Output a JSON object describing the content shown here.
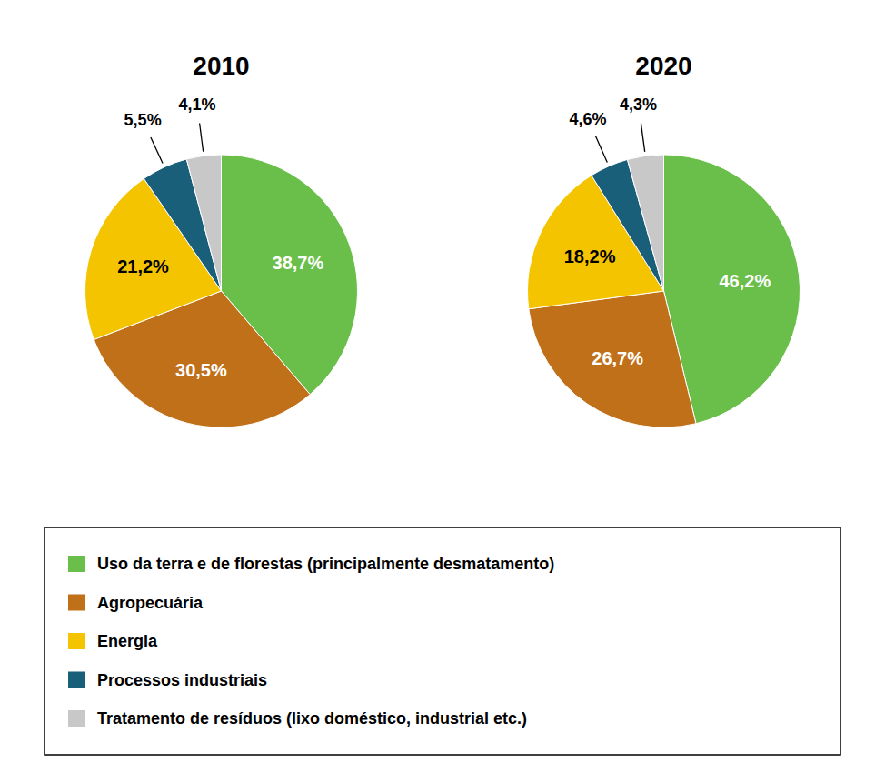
{
  "chart_data": {
    "type": "pie",
    "categories": [
      "Uso da terra e de florestas (principalmente desmatamento)",
      "Agropecuária",
      "Energia",
      "Processos industriais",
      "Tratamento de resíduos (lixo doméstico, industrial etc.)"
    ],
    "colors": [
      "#6abf4b",
      "#c1701a",
      "#f5c400",
      "#1a5f7a",
      "#c8c8c8"
    ],
    "series": [
      {
        "name": "2010",
        "values": [
          38.7,
          30.5,
          21.2,
          5.5,
          4.1
        ],
        "value_labels": [
          "38,7%",
          "30,5%",
          "21,2%",
          "5,5%",
          "4,1%"
        ]
      },
      {
        "name": "2020",
        "values": [
          46.2,
          26.7,
          18.2,
          4.6,
          4.3
        ],
        "value_labels": [
          "46,2%",
          "26,7%",
          "18,2%",
          "4,6%",
          "4,3%"
        ]
      }
    ],
    "data_labels": true,
    "legend": "bottom"
  }
}
